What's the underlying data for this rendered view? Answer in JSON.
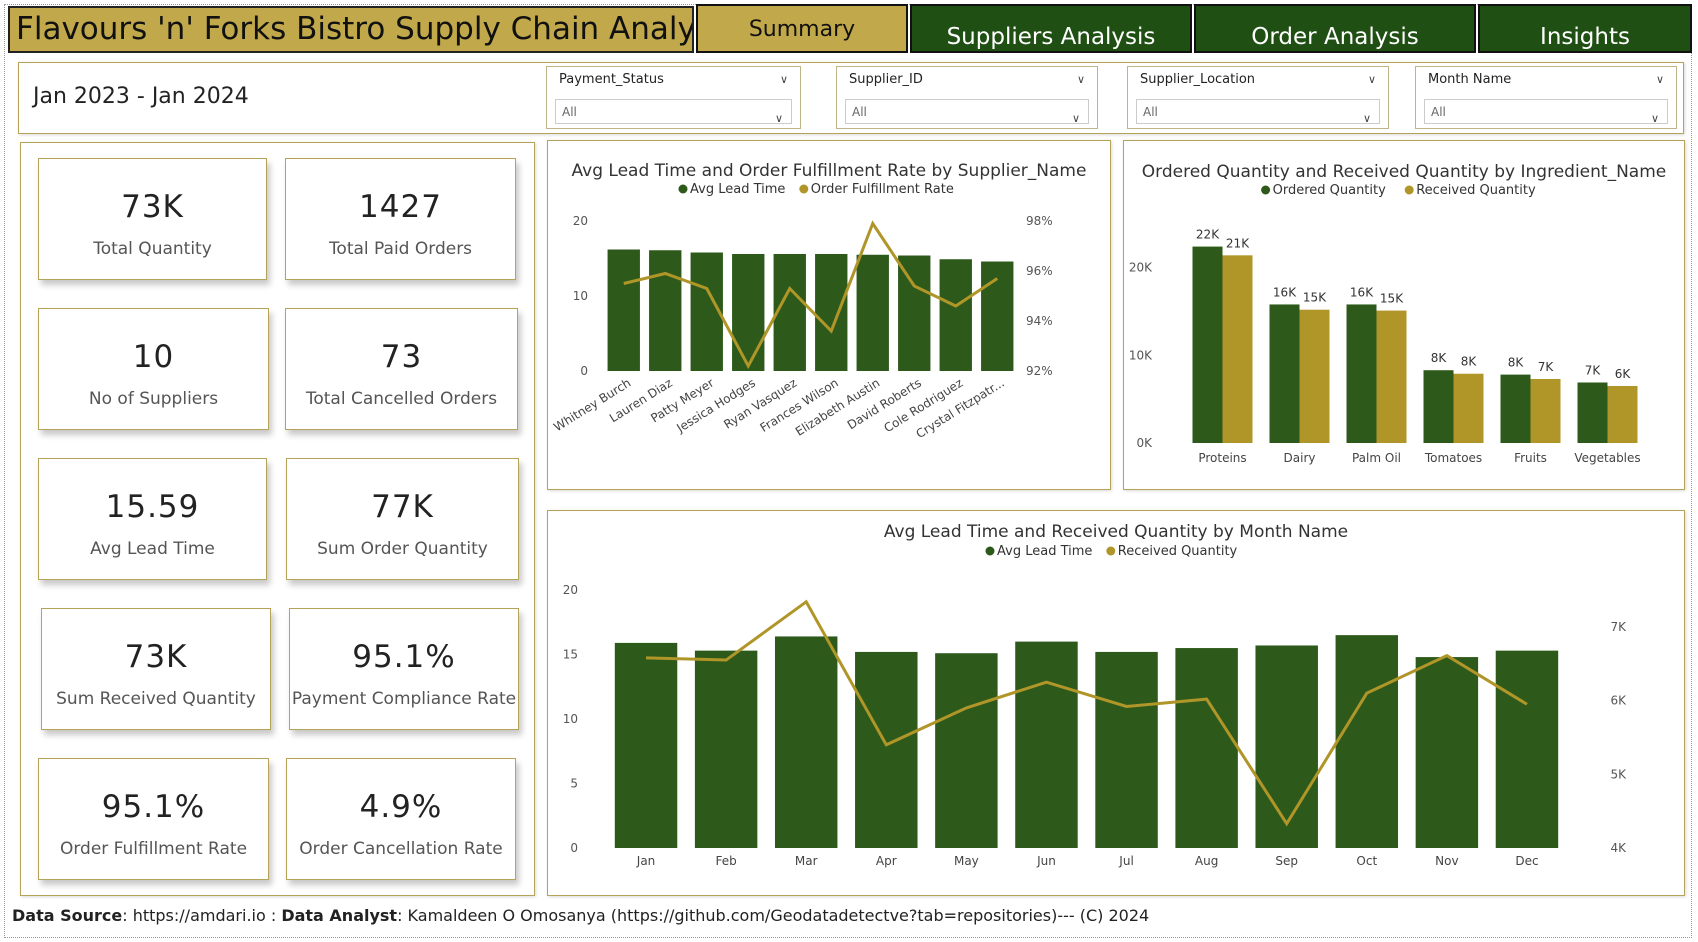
{
  "title": "Flavours 'n' Forks Bistro Supply Chain Analysis",
  "nav": [
    {
      "label": "Summary",
      "active": true
    },
    {
      "label": "Suppliers Analysis",
      "active": false
    },
    {
      "label": "Order Analysis",
      "active": false
    },
    {
      "label": "Insights",
      "active": false
    }
  ],
  "date_range": "Jan 2023 - Jan 2024",
  "slicers": [
    {
      "label": "Payment_Status",
      "value": "All"
    },
    {
      "label": "Supplier_ID",
      "value": "All"
    },
    {
      "label": "Supplier_Location",
      "value": "All"
    },
    {
      "label": "Month Name",
      "value": "All"
    }
  ],
  "kpis": [
    {
      "value": "73K",
      "label": "Total Quantity"
    },
    {
      "value": "1427",
      "label": "Total Paid Orders"
    },
    {
      "value": "10",
      "label": "No of Suppliers"
    },
    {
      "value": "73",
      "label": "Total Cancelled Orders"
    },
    {
      "value": "15.59",
      "label": "Avg Lead Time"
    },
    {
      "value": "77K",
      "label": "Sum Order Quantity"
    },
    {
      "value": "73K",
      "label": "Sum Received Quantity"
    },
    {
      "value": "95.1%",
      "label": "Payment Compliance Rate"
    },
    {
      "value": "95.1%",
      "label": "Order Fulfillment Rate"
    },
    {
      "value": "4.9%",
      "label": "Order Cancellation Rate"
    }
  ],
  "colors": {
    "green": "#2d5a1b",
    "gold": "#b09528",
    "nav_green": "#1f4f13",
    "nav_gold": "#c1a84a"
  },
  "chart_data": [
    {
      "type": "bar",
      "title": "Avg Lead Time and Order Fulfillment Rate by Supplier_Name",
      "legend": [
        "Avg Lead Time",
        "Order Fulfillment Rate"
      ],
      "categories": [
        "Whitney Burch",
        "Lauren Diaz",
        "Patty Meyer",
        "Jessica Hodges",
        "Ryan Vasquez",
        "Frances Wilson",
        "Elizabeth Austin",
        "David Roberts",
        "Cole Rodriguez",
        "Crystal Fitzpatr..."
      ],
      "series": [
        {
          "name": "Avg Lead Time",
          "type": "bar",
          "axis": "left",
          "values": [
            16.2,
            16.1,
            15.8,
            15.6,
            15.6,
            15.6,
            15.5,
            15.4,
            14.9,
            14.6
          ]
        },
        {
          "name": "Order Fulfillment Rate",
          "type": "line",
          "axis": "right",
          "values": [
            95.5,
            95.9,
            95.3,
            92.2,
            95.3,
            93.6,
            97.9,
            95.4,
            94.6,
            95.7
          ]
        }
      ],
      "y_left": {
        "min": 0,
        "max": 20,
        "ticks": [
          "0",
          "10",
          "20"
        ]
      },
      "y_right": {
        "min": 92,
        "max": 98,
        "ticks": [
          "92%",
          "94%",
          "96%",
          "98%"
        ]
      }
    },
    {
      "type": "bar",
      "title": "Ordered Quantity and Received Quantity by Ingredient_Name",
      "legend": [
        "Ordered Quantity",
        "Received Quantity"
      ],
      "categories": [
        "Proteins",
        "Dairy",
        "Palm Oil",
        "Tomatoes",
        "Fruits",
        "Vegetables"
      ],
      "series": [
        {
          "name": "Ordered Quantity",
          "values": [
            22400,
            15800,
            15800,
            8300,
            7800,
            6900
          ],
          "labels": [
            "22K",
            "16K",
            "16K",
            "8K",
            "8K",
            "7K"
          ]
        },
        {
          "name": "Received Quantity",
          "values": [
            21400,
            15200,
            15100,
            7900,
            7300,
            6500
          ],
          "labels": [
            "21K",
            "15K",
            "15K",
            "8K",
            "7K",
            "6K"
          ]
        }
      ],
      "y": {
        "min": 0,
        "max": 26000,
        "ticks": [
          {
            "v": 0,
            "label": "0K"
          },
          {
            "v": 10000,
            "label": "10K"
          },
          {
            "v": 20000,
            "label": "20K"
          }
        ]
      }
    },
    {
      "type": "bar",
      "title": "Avg Lead Time and Received Quantity by Month Name",
      "legend": [
        "Avg Lead Time",
        "Received Quantity"
      ],
      "categories": [
        "Jan",
        "Feb",
        "Mar",
        "Apr",
        "May",
        "Jun",
        "Jul",
        "Aug",
        "Sep",
        "Oct",
        "Nov",
        "Dec"
      ],
      "series": [
        {
          "name": "Avg Lead Time",
          "type": "bar",
          "axis": "left",
          "values": [
            15.9,
            15.3,
            16.4,
            15.2,
            15.1,
            16.0,
            15.2,
            15.5,
            15.7,
            16.5,
            14.8,
            15.3
          ]
        },
        {
          "name": "Received Quantity",
          "type": "line",
          "axis": "right",
          "values": [
            6580,
            6550,
            7340,
            5400,
            5900,
            6250,
            5920,
            6020,
            4330,
            6100,
            6610,
            5950
          ]
        }
      ],
      "y_left": {
        "min": 0,
        "max": 20,
        "ticks": [
          "0",
          "5",
          "10",
          "15",
          "20"
        ]
      },
      "y_right": {
        "min": 4000,
        "max": 7500,
        "ticks": [
          {
            "v": 4000,
            "label": "4K"
          },
          {
            "v": 5000,
            "label": "5K"
          },
          {
            "v": 6000,
            "label": "6K"
          },
          {
            "v": 7000,
            "label": "7K"
          }
        ]
      }
    }
  ],
  "footer": {
    "source_label": "Data Source",
    "source_value": ": https://amdari.io : ",
    "analyst_label": "Data Analyst",
    "analyst_value": ": Kamaldeen O Omosanya (https://github.com/Geodatadetectve?tab=repositories)--- (C) 2024"
  }
}
